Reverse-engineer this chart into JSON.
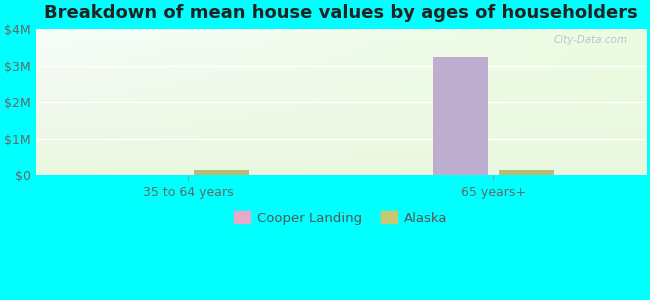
{
  "title": "Breakdown of mean house values by ages of householders",
  "categories": [
    "35 to 64 years",
    "65 years+"
  ],
  "series": {
    "Cooper Landing": [
      0,
      3250000
    ],
    "Alaska": [
      150000,
      150000
    ]
  },
  "bar_colors": {
    "Cooper Landing": "#c0aed0",
    "Alaska": "#b8bb78"
  },
  "legend_marker_colors": {
    "Cooper Landing": "#e8a8c8",
    "Alaska": "#c8c870"
  },
  "ylim": [
    0,
    4000000
  ],
  "yticks": [
    0,
    1000000,
    2000000,
    3000000,
    4000000
  ],
  "ytick_labels": [
    "$0",
    "$1M",
    "$2M",
    "$3M",
    "$4M"
  ],
  "background_color": "#00ffff",
  "title_fontsize": 13,
  "bar_width": 0.18,
  "watermark": "City-Data.com"
}
